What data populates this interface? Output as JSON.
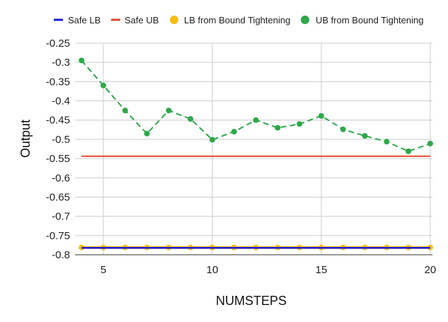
{
  "chart_data": {
    "type": "line",
    "title": "",
    "xlabel": "NUMSTEPS",
    "ylabel": "Output",
    "xlim": [
      3.7,
      20.1
    ],
    "ylim": [
      -0.8,
      -0.25
    ],
    "x_ticks": [
      5,
      10,
      15,
      20
    ],
    "y_ticks": [
      -0.25,
      -0.3,
      -0.35,
      -0.4,
      -0.45,
      -0.5,
      -0.55,
      -0.6,
      -0.65,
      -0.7,
      -0.75,
      -0.8
    ],
    "grid": true,
    "legend_position": "top",
    "x": [
      4,
      5,
      6,
      7,
      8,
      9,
      10,
      11,
      12,
      13,
      14,
      15,
      16,
      17,
      18,
      19,
      20
    ],
    "series": [
      {
        "name": "Safe LB",
        "color": "#1a1adb",
        "style": "solid",
        "markers": false,
        "values": [
          -0.782,
          -0.782,
          -0.782,
          -0.782,
          -0.782,
          -0.782,
          -0.782,
          -0.782,
          -0.782,
          -0.782,
          -0.782,
          -0.782,
          -0.782,
          -0.782,
          -0.782,
          -0.782,
          -0.782
        ]
      },
      {
        "name": "Safe UB",
        "color": "#e0492f",
        "style": "solid",
        "markers": false,
        "values": [
          -0.544,
          -0.544,
          -0.544,
          -0.544,
          -0.544,
          -0.544,
          -0.544,
          -0.544,
          -0.544,
          -0.544,
          -0.544,
          -0.544,
          -0.544,
          -0.544,
          -0.544,
          -0.544,
          -0.544
        ]
      },
      {
        "name": "LB from Bound Tightening",
        "color": "#f5bd14",
        "style": "solid",
        "markers": true,
        "values": [
          -0.781,
          -0.781,
          -0.781,
          -0.781,
          -0.781,
          -0.781,
          -0.781,
          -0.781,
          -0.781,
          -0.781,
          -0.781,
          -0.781,
          -0.781,
          -0.781,
          -0.781,
          -0.781,
          -0.781
        ]
      },
      {
        "name": "UB from Bound Tightening",
        "color": "#2ea84a",
        "style": "dashed",
        "markers": true,
        "values": [
          -0.295,
          -0.36,
          -0.425,
          -0.485,
          -0.425,
          -0.447,
          -0.501,
          -0.48,
          -0.45,
          -0.47,
          -0.46,
          -0.439,
          -0.474,
          -0.491,
          -0.506,
          -0.531,
          -0.511
        ]
      }
    ]
  }
}
